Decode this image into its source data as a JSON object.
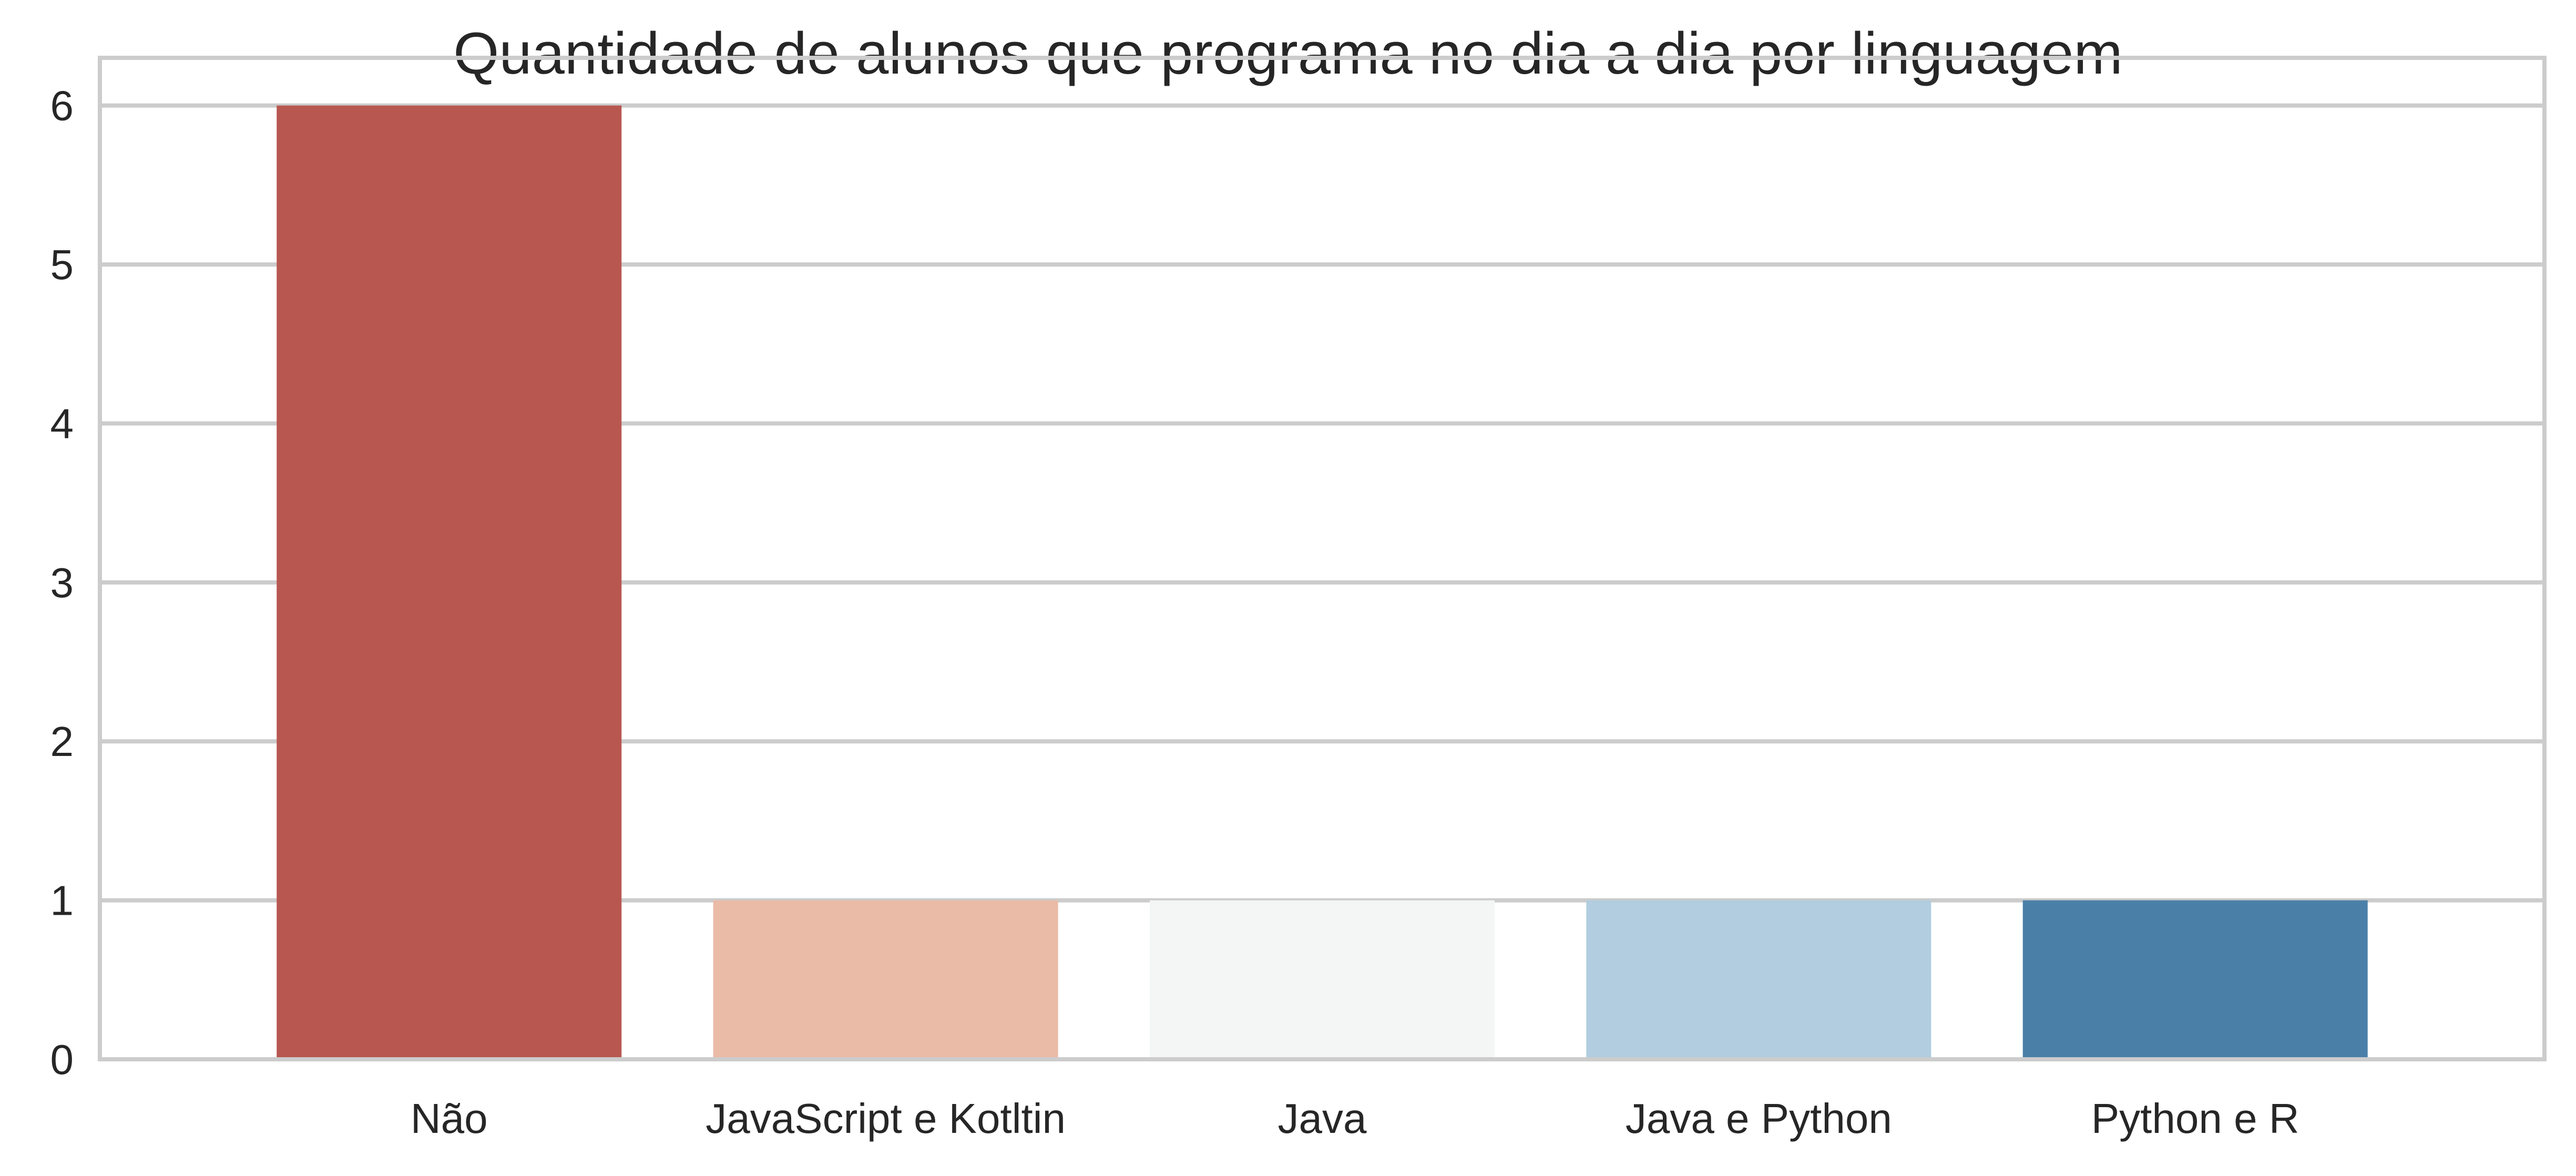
{
  "chart_data": {
    "type": "bar",
    "title": "Quantidade de alunos que programa no dia a dia por linguagem",
    "xlabel": "",
    "ylabel": "",
    "categories": [
      "Não",
      "JavaScript e Kotltin",
      "Java",
      "Java e Python",
      "Python e R"
    ],
    "values": [
      6,
      1,
      1,
      1,
      1
    ],
    "colors": [
      "#b75750",
      "#eabba6",
      "#f4f6f6",
      "#b1cddf",
      "#4a80a8"
    ],
    "ylim": [
      0,
      6.3
    ],
    "yticks": [
      0,
      1,
      2,
      3,
      4,
      5,
      6
    ],
    "grid": "y",
    "legend": "none"
  }
}
